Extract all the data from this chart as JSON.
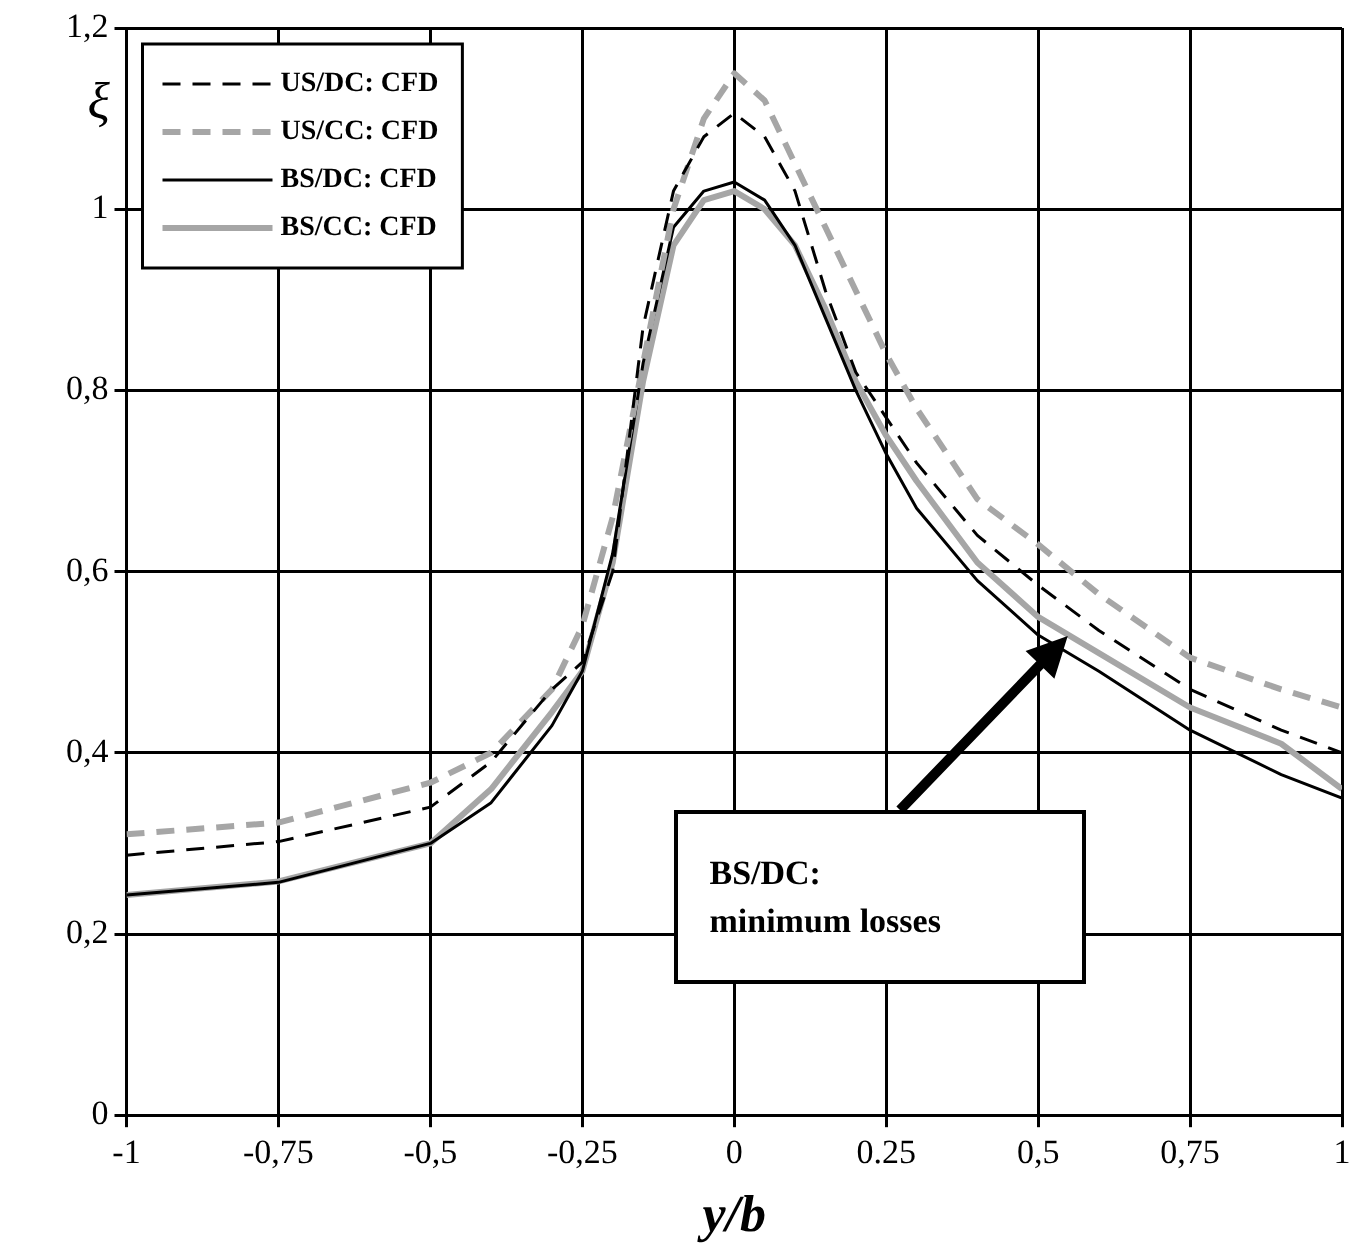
{
  "chart_data": {
    "type": "line",
    "xlabel": "y/b",
    "ylabel": "ξ",
    "x": [
      -1,
      -0.75,
      -0.5,
      -0.4,
      -0.3,
      -0.25,
      -0.2,
      -0.15,
      -0.1,
      -0.05,
      0,
      0.05,
      0.1,
      0.15,
      0.2,
      0.25,
      0.3,
      0.4,
      0.5,
      0.6,
      0.75,
      0.9,
      1
    ],
    "series": [
      {
        "name": "US/DC: CFD",
        "color": "#000000",
        "line_style": "dashed",
        "values": [
          0.287,
          0.302,
          0.34,
          0.39,
          0.47,
          0.5,
          0.6,
          0.87,
          1.02,
          1.08,
          1.106,
          1.08,
          1.02,
          0.91,
          0.82,
          0.77,
          0.72,
          0.64,
          0.585,
          0.535,
          0.47,
          0.425,
          0.4
        ]
      },
      {
        "name": "US/CC: CFD",
        "color": "#a6a6a6",
        "line_style": "dashed",
        "values": [
          0.31,
          0.323,
          0.367,
          0.4,
          0.47,
          0.54,
          0.66,
          0.83,
          1.0,
          1.1,
          1.15,
          1.12,
          1.05,
          0.98,
          0.91,
          0.84,
          0.78,
          0.68,
          0.63,
          0.575,
          0.505,
          0.47,
          0.45
        ]
      },
      {
        "name": "BS/DC: CFD",
        "color": "#000000",
        "line_style": "solid",
        "values": [
          0.243,
          0.257,
          0.3,
          0.345,
          0.43,
          0.49,
          0.62,
          0.83,
          0.98,
          1.02,
          1.03,
          1.01,
          0.96,
          0.88,
          0.8,
          0.73,
          0.67,
          0.59,
          0.53,
          0.49,
          0.425,
          0.376,
          0.35
        ]
      },
      {
        "name": "BS/CC: CFD",
        "color": "#a6a6a6",
        "line_style": "solid",
        "values": [
          0.243,
          0.258,
          0.3,
          0.36,
          0.445,
          0.49,
          0.61,
          0.81,
          0.96,
          1.01,
          1.02,
          1.0,
          0.96,
          0.89,
          0.81,
          0.75,
          0.7,
          0.61,
          0.55,
          0.51,
          0.45,
          0.41,
          0.36
        ]
      }
    ],
    "xlim": [
      -1,
      1
    ],
    "xticks": [
      {
        "value": -1,
        "label": "-1"
      },
      {
        "value": -0.75,
        "label": "-0,75"
      },
      {
        "value": -0.5,
        "label": "-0,5"
      },
      {
        "value": -0.25,
        "label": "-0,25"
      },
      {
        "value": 0,
        "label": "0"
      },
      {
        "value": 0.25,
        "label": "0.25"
      },
      {
        "value": 0.5,
        "label": "0,5"
      },
      {
        "value": 0.75,
        "label": "0,75"
      },
      {
        "value": 1,
        "label": "1"
      }
    ],
    "ylim": [
      0,
      1.2
    ],
    "yticks": [
      {
        "value": 0,
        "label": "0"
      },
      {
        "value": 0.2,
        "label": "0,2"
      },
      {
        "value": 0.4,
        "label": "0,4"
      },
      {
        "value": 0.6,
        "label": "0,6"
      },
      {
        "value": 0.8,
        "label": "0,8"
      },
      {
        "value": 1,
        "label": "1"
      },
      {
        "value": 1.2,
        "label": "1,2"
      }
    ],
    "annotations": [
      "BS/DC:\nminimum losses"
    ],
    "grid": true,
    "legend": "top left",
    "marker": "none"
  }
}
